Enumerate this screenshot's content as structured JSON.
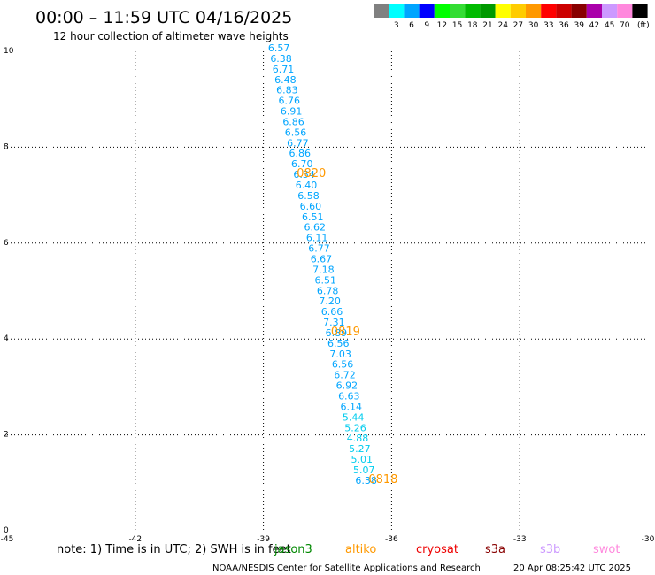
{
  "header": {
    "title": "00:00 – 11:59 UTC 04/16/2025",
    "subtitle": "12 hour collection of altimeter wave heights"
  },
  "color_scale": {
    "unit": "(ft)",
    "bins": [
      {
        "label": "",
        "color": "#808080"
      },
      {
        "label": "3",
        "color": "#00ffff"
      },
      {
        "label": "6",
        "color": "#00a5ff"
      },
      {
        "label": "9",
        "color": "#0000ff"
      },
      {
        "label": "12",
        "color": "#00ff00"
      },
      {
        "label": "15",
        "color": "#33dd33"
      },
      {
        "label": "18",
        "color": "#00bb00"
      },
      {
        "label": "21",
        "color": "#009900"
      },
      {
        "label": "24",
        "color": "#ffff00"
      },
      {
        "label": "27",
        "color": "#ffcc00"
      },
      {
        "label": "30",
        "color": "#ff9900"
      },
      {
        "label": "33",
        "color": "#ff0000"
      },
      {
        "label": "36",
        "color": "#cc0000"
      },
      {
        "label": "39",
        "color": "#880000"
      },
      {
        "label": "42",
        "color": "#aa00aa"
      },
      {
        "label": "45",
        "color": "#cc99ff"
      },
      {
        "label": "70",
        "color": "#ff88dd"
      },
      {
        "label": "",
        "color": "#000000"
      }
    ]
  },
  "chart_data": {
    "type": "scatter",
    "xlim": [
      -45,
      -30
    ],
    "ylim": [
      0,
      10
    ],
    "x_ticks": [
      -45,
      -42,
      -39,
      -36,
      -33,
      -30
    ],
    "x_tick_labels": [
      "-45",
      "-42",
      "-39",
      "-36",
      "-33",
      "-30"
    ],
    "y_ticks": [
      0,
      2,
      4,
      6,
      8,
      10
    ],
    "y_tick_labels": [
      "0",
      "2",
      "4",
      "6",
      "8",
      "10"
    ],
    "grid": true,
    "points": [
      {
        "lon": -38.89,
        "lat": 10.0,
        "value": "6.57",
        "color": "#00a5ff"
      },
      {
        "lon": -38.84,
        "lat": 9.78,
        "value": "6.38",
        "color": "#00a5ff"
      },
      {
        "lon": -38.79,
        "lat": 9.56,
        "value": "6.71",
        "color": "#00a5ff"
      },
      {
        "lon": -38.74,
        "lat": 9.34,
        "value": "6.48",
        "color": "#00a5ff"
      },
      {
        "lon": -38.7,
        "lat": 9.12,
        "value": "6.83",
        "color": "#00a5ff"
      },
      {
        "lon": -38.65,
        "lat": 8.9,
        "value": "6.76",
        "color": "#00a5ff"
      },
      {
        "lon": -38.6,
        "lat": 8.68,
        "value": "6.91",
        "color": "#00a5ff"
      },
      {
        "lon": -38.55,
        "lat": 8.46,
        "value": "6.86",
        "color": "#00a5ff"
      },
      {
        "lon": -38.5,
        "lat": 8.24,
        "value": "6.56",
        "color": "#00a5ff"
      },
      {
        "lon": -38.45,
        "lat": 8.02,
        "value": "6.77",
        "color": "#00a5ff"
      },
      {
        "lon": -38.4,
        "lat": 7.8,
        "value": "6.86",
        "color": "#00a5ff"
      },
      {
        "lon": -38.35,
        "lat": 7.58,
        "value": "6.70",
        "color": "#00a5ff"
      },
      {
        "lon": -38.3,
        "lat": 7.36,
        "value": "6.54",
        "color": "#00a5ff"
      },
      {
        "lon": -38.25,
        "lat": 7.14,
        "value": "6.40",
        "color": "#00a5ff"
      },
      {
        "lon": -38.2,
        "lat": 6.92,
        "value": "6.58",
        "color": "#00a5ff"
      },
      {
        "lon": -38.15,
        "lat": 6.7,
        "value": "6.60",
        "color": "#00a5ff"
      },
      {
        "lon": -38.1,
        "lat": 6.48,
        "value": "6.51",
        "color": "#00a5ff"
      },
      {
        "lon": -38.05,
        "lat": 6.26,
        "value": "6.62",
        "color": "#00a5ff"
      },
      {
        "lon": -38.0,
        "lat": 6.04,
        "value": "6.11",
        "color": "#00a5ff"
      },
      {
        "lon": -37.95,
        "lat": 5.82,
        "value": "6.77",
        "color": "#00a5ff"
      },
      {
        "lon": -37.9,
        "lat": 5.6,
        "value": "6.67",
        "color": "#00a5ff"
      },
      {
        "lon": -37.85,
        "lat": 5.38,
        "value": "7.18",
        "color": "#00a5ff"
      },
      {
        "lon": -37.8,
        "lat": 5.16,
        "value": "6.51",
        "color": "#00a5ff"
      },
      {
        "lon": -37.75,
        "lat": 4.94,
        "value": "6.78",
        "color": "#00a5ff"
      },
      {
        "lon": -37.7,
        "lat": 4.72,
        "value": "7.20",
        "color": "#00a5ff"
      },
      {
        "lon": -37.65,
        "lat": 4.5,
        "value": "6.66",
        "color": "#00a5ff"
      },
      {
        "lon": -37.6,
        "lat": 4.28,
        "value": "7.31",
        "color": "#00a5ff"
      },
      {
        "lon": -37.55,
        "lat": 4.06,
        "value": "6.89",
        "color": "#00a5ff"
      },
      {
        "lon": -37.5,
        "lat": 3.84,
        "value": "6.56",
        "color": "#00a5ff"
      },
      {
        "lon": -37.45,
        "lat": 3.62,
        "value": "7.03",
        "color": "#00a5ff"
      },
      {
        "lon": -37.4,
        "lat": 3.4,
        "value": "6.56",
        "color": "#00a5ff"
      },
      {
        "lon": -37.35,
        "lat": 3.18,
        "value": "6.72",
        "color": "#00a5ff"
      },
      {
        "lon": -37.3,
        "lat": 2.96,
        "value": "6.92",
        "color": "#00a5ff"
      },
      {
        "lon": -37.25,
        "lat": 2.74,
        "value": "6.63",
        "color": "#00a5ff"
      },
      {
        "lon": -37.2,
        "lat": 2.52,
        "value": "6.14",
        "color": "#00a5ff"
      },
      {
        "lon": -37.15,
        "lat": 2.3,
        "value": "5.44",
        "color": "#00ccee"
      },
      {
        "lon": -37.1,
        "lat": 2.08,
        "value": "5.26",
        "color": "#00ccee"
      },
      {
        "lon": -37.05,
        "lat": 1.86,
        "value": "4.88",
        "color": "#00ccee"
      },
      {
        "lon": -37.0,
        "lat": 1.64,
        "value": "5.27",
        "color": "#00ccee"
      },
      {
        "lon": -36.95,
        "lat": 1.42,
        "value": "5.01",
        "color": "#00ccee"
      },
      {
        "lon": -36.9,
        "lat": 1.2,
        "value": "5.07",
        "color": "#00ccee"
      },
      {
        "lon": -36.85,
        "lat": 0.98,
        "value": "6.38",
        "color": "#00a5ff"
      }
    ],
    "time_labels": [
      {
        "lon": -38.22,
        "lat": 7.38,
        "text": "0820",
        "color": "#ff9900"
      },
      {
        "lon": -37.42,
        "lat": 4.08,
        "text": "0819",
        "color": "#ff9900"
      },
      {
        "lon": -36.54,
        "lat": 1.0,
        "text": "0818",
        "color": "#ff9900"
      }
    ]
  },
  "note": {
    "text": "note:  1) Time is in UTC;  2) SWH is in feet"
  },
  "satellites": [
    {
      "name": "jason3",
      "color": "#008800"
    },
    {
      "name": "altiko",
      "color": "#ff9900"
    },
    {
      "name": "cryosat",
      "color": "#ee0000"
    },
    {
      "name": "s3a",
      "color": "#880000"
    },
    {
      "name": "s3b",
      "color": "#cc99ff"
    },
    {
      "name": "swot",
      "color": "#ff88dd"
    }
  ],
  "footer": {
    "credit": "NOAA/NESDIS Center for Satellite Applications and Research",
    "timestamp": "20 Apr 08:25:42 UTC 2025"
  }
}
